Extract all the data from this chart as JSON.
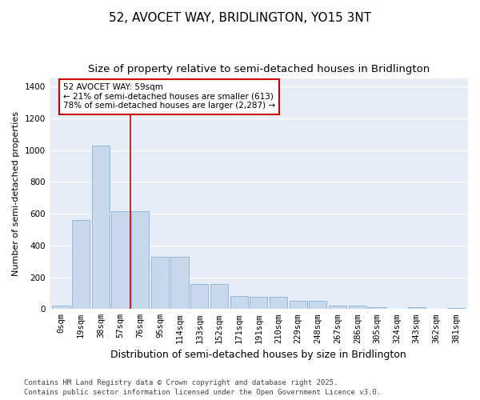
{
  "title": "52, AVOCET WAY, BRIDLINGTON, YO15 3NT",
  "subtitle": "Size of property relative to semi-detached houses in Bridlington",
  "xlabel": "Distribution of semi-detached houses by size in Bridlington",
  "ylabel": "Number of semi-detached properties",
  "bar_color": "#c8d9ee",
  "bar_edge_color": "#8ab0d4",
  "background_color": "#e8eef8",
  "annotation_text": "52 AVOCET WAY: 59sqm\n← 21% of semi-detached houses are smaller (613)\n78% of semi-detached houses are larger (2,287) →",
  "vline_x": 3.5,
  "vline_color": "#cc0000",
  "categories": [
    "0sqm",
    "19sqm",
    "38sqm",
    "57sqm",
    "76sqm",
    "95sqm",
    "114sqm",
    "133sqm",
    "152sqm",
    "171sqm",
    "191sqm",
    "210sqm",
    "229sqm",
    "248sqm",
    "267sqm",
    "286sqm",
    "305sqm",
    "324sqm",
    "343sqm",
    "362sqm",
    "381sqm"
  ],
  "values": [
    20,
    560,
    1030,
    615,
    615,
    330,
    330,
    160,
    160,
    80,
    75,
    75,
    50,
    50,
    20,
    20,
    10,
    0,
    10,
    0,
    5
  ],
  "ylim": [
    0,
    1450
  ],
  "yticks": [
    0,
    200,
    400,
    600,
    800,
    1000,
    1200,
    1400
  ],
  "footnote": "Contains HM Land Registry data © Crown copyright and database right 2025.\nContains public sector information licensed under the Open Government Licence v3.0.",
  "title_fontsize": 11,
  "subtitle_fontsize": 9.5,
  "xlabel_fontsize": 9,
  "ylabel_fontsize": 8,
  "tick_fontsize": 7.5,
  "footnote_fontsize": 6.5,
  "annot_fontsize": 7.5
}
